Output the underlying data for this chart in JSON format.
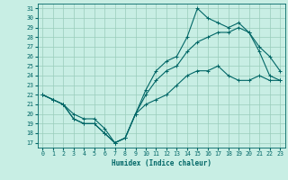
{
  "title": "",
  "xlabel": "Humidex (Indice chaleur)",
  "bg_color": "#c8eee4",
  "line_color": "#006666",
  "grid_color": "#99ccbb",
  "xlim": [
    -0.5,
    23.5
  ],
  "ylim": [
    16.5,
    31.5
  ],
  "yticks": [
    17,
    18,
    19,
    20,
    21,
    22,
    23,
    24,
    25,
    26,
    27,
    28,
    29,
    30,
    31
  ],
  "xticks": [
    0,
    1,
    2,
    3,
    4,
    5,
    6,
    7,
    8,
    9,
    10,
    11,
    12,
    13,
    14,
    15,
    16,
    17,
    18,
    19,
    20,
    21,
    22,
    23
  ],
  "line1_x": [
    0,
    1,
    2,
    3,
    4,
    5,
    6,
    7,
    8,
    9,
    10,
    11,
    12,
    13,
    14,
    15,
    16,
    17,
    18,
    19,
    20,
    21,
    22,
    23
  ],
  "line1_y": [
    22,
    21.5,
    21,
    20,
    19.5,
    19.5,
    18.5,
    17.0,
    17.5,
    20,
    21,
    21.5,
    22,
    23,
    24,
    24.5,
    24.5,
    25,
    24,
    23.5,
    23.5,
    24,
    23.5,
    23.5
  ],
  "line2_x": [
    0,
    1,
    2,
    3,
    4,
    5,
    6,
    7,
    8,
    9,
    10,
    11,
    12,
    13,
    14,
    15,
    16,
    17,
    18,
    19,
    20,
    21,
    22,
    23
  ],
  "line2_y": [
    22,
    21.5,
    21,
    19.5,
    19,
    19,
    18,
    17,
    17.5,
    20,
    22,
    23.5,
    24.5,
    25,
    26.5,
    27.5,
    28,
    28.5,
    28.5,
    29,
    28.5,
    27,
    26,
    24.5
  ],
  "line3_x": [
    0,
    1,
    2,
    3,
    4,
    5,
    6,
    7,
    8,
    9,
    10,
    11,
    12,
    13,
    14,
    15,
    16,
    17,
    18,
    19,
    20,
    21,
    22,
    23
  ],
  "line3_y": [
    22,
    21.5,
    21,
    19.5,
    19,
    19,
    18,
    17,
    17.5,
    20,
    22.5,
    24.5,
    25.5,
    26,
    28,
    31,
    30,
    29.5,
    29,
    29.5,
    28.5,
    26.5,
    24,
    23.5
  ]
}
